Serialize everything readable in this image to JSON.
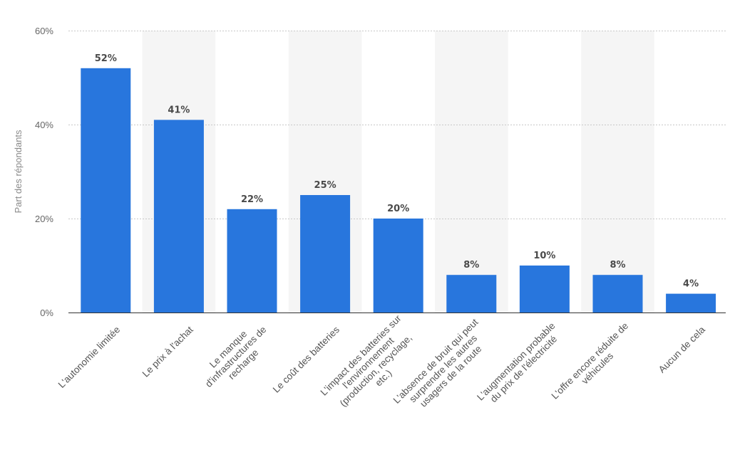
{
  "chart_data": {
    "type": "bar",
    "ylabel": "Part des répondants",
    "ylim": [
      0,
      60
    ],
    "yticks": [
      "0%",
      "20%",
      "40%",
      "60%"
    ],
    "grid": true,
    "colors": {
      "bar": "#2876dd",
      "band": "#f5f5f5",
      "grid": "#c8c8c8",
      "axis": "#333333"
    },
    "categories": [
      [
        "L'autonomie limitée"
      ],
      [
        "Le prix à l'achat"
      ],
      [
        "Le manque",
        "d'infrastructures de",
        "recharge"
      ],
      [
        "Le coût des batteries"
      ],
      [
        "L'impact des batteries sur",
        "l'environnement",
        "(production, recyclage,",
        "etc.)"
      ],
      [
        "L'absence de bruit qui peut",
        "surprendre les autres",
        "usagers de la route"
      ],
      [
        "L'augmentation probable",
        "du prix de l'électricité"
      ],
      [
        "L'offre encore réduite de",
        "véhicules"
      ],
      [
        "Aucun de cela"
      ]
    ],
    "values": [
      52,
      41,
      22,
      25,
      20,
      8,
      10,
      8,
      4
    ],
    "value_labels": [
      "52%",
      "41%",
      "22%",
      "25%",
      "20%",
      "8%",
      "10%",
      "8%",
      "4%"
    ]
  }
}
